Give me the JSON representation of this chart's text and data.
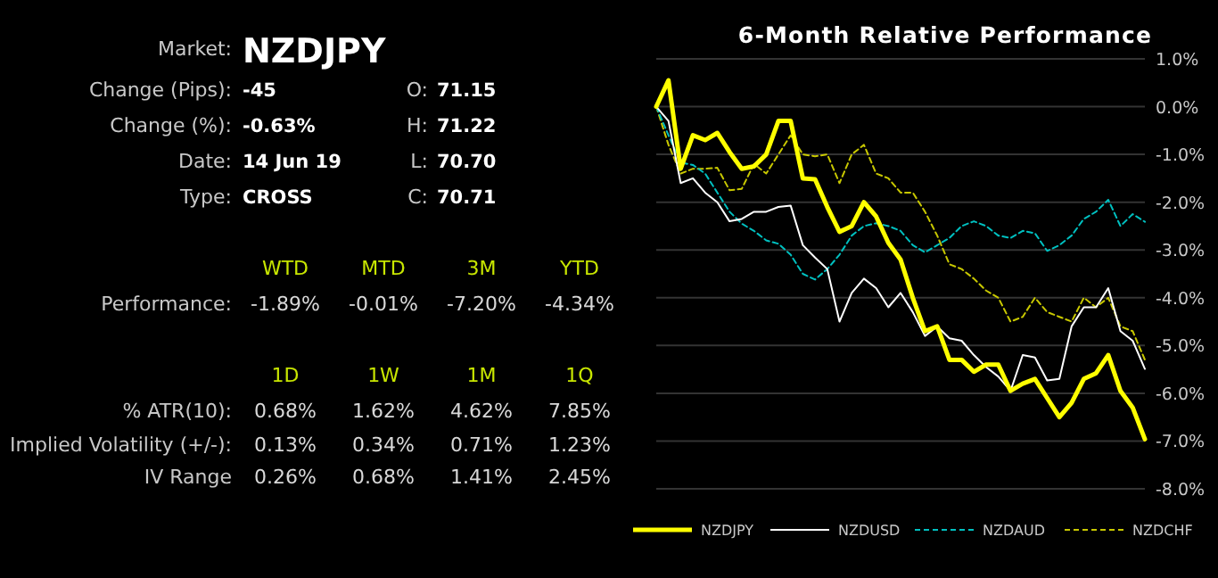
{
  "chart_data": [
    {
      "type": "other",
      "annotations": [
        "Market:",
        "NZDJPY",
        "Change (Pips):",
        "-45",
        "O:",
        "71.15",
        "Change (%):",
        "-0.63%",
        "H:",
        "71.22",
        "Date:",
        "14 Jun 19",
        "L:",
        "70.70",
        "Type:",
        "CROSS",
        "C:",
        "70.71",
        "WTD",
        "MTD",
        "3M",
        "YTD",
        "Performance:",
        "-1.89%",
        "-0.01%",
        "-7.20%",
        "-4.34%",
        "1D",
        "1W",
        "1M",
        "1Q",
        "% ATR(10):",
        "0.68%",
        "1.62%",
        "4.62%",
        "7.85%",
        "Implied Volatility (+/-):",
        "0.13%",
        "0.34%",
        "0.71%",
        "1.23%",
        "IV Range",
        "0.26%",
        "0.68%",
        "1.41%",
        "2.45%"
      ]
    },
    {
      "type": "line",
      "title": "6-Month Relative Performance",
      "categories": [
        null,
        null,
        null,
        null,
        null,
        null,
        null,
        null,
        null,
        null,
        null,
        null,
        null,
        null,
        null,
        null,
        null,
        null,
        null,
        null,
        null,
        null,
        null,
        null,
        null,
        null,
        null,
        null,
        null,
        null,
        null,
        null,
        null,
        null,
        null,
        null,
        null,
        null,
        null,
        null,
        null
      ],
      "series": [
        {
          "name": "NZDJPY",
          "color": "#ffff00",
          "line_style": "solid",
          "values": [
            0,
            0.55,
            -1.3,
            -0.6,
            -0.7,
            -0.55,
            -0.95,
            -1.3,
            -1.25,
            -1.0,
            -0.3,
            -0.3,
            -1.5,
            -1.52,
            -2.1,
            -2.62,
            -2.5,
            -2.0,
            -2.3,
            -2.85,
            -3.2,
            -4.0,
            -4.7,
            -4.6,
            -5.3,
            -5.3,
            -5.55,
            -5.4,
            -5.4,
            -5.95,
            -5.8,
            -5.7,
            -6.1,
            -6.5,
            -6.2,
            -5.7,
            -5.58,
            -5.2,
            -5.95,
            -6.3,
            -6.96
          ]
        },
        {
          "name": "NZDUSD",
          "color": "#ffffff",
          "line_style": "solid",
          "values": [
            0,
            -0.3,
            -1.6,
            -1.5,
            -1.8,
            -2.0,
            -2.4,
            -2.35,
            -2.2,
            -2.2,
            -2.1,
            -2.07,
            -2.9,
            -3.16,
            -3.4,
            -4.5,
            -3.9,
            -3.6,
            -3.8,
            -4.2,
            -3.9,
            -4.3,
            -4.8,
            -4.6,
            -4.85,
            -4.9,
            -5.2,
            -5.45,
            -5.65,
            -5.95,
            -5.2,
            -5.25,
            -5.73,
            -5.7,
            -4.6,
            -4.2,
            -4.2,
            -3.8,
            -4.7,
            -4.9,
            -5.49
          ]
        },
        {
          "name": "NZDAUD",
          "color": "#00c0c0",
          "line_style": "dashed",
          "values": [
            0,
            -0.6,
            -1.17,
            -1.22,
            -1.4,
            -1.8,
            -2.2,
            -2.45,
            -2.6,
            -2.8,
            -2.87,
            -3.1,
            -3.5,
            -3.62,
            -3.4,
            -3.1,
            -2.7,
            -2.5,
            -2.44,
            -2.5,
            -2.6,
            -2.9,
            -3.05,
            -2.9,
            -2.75,
            -2.5,
            -2.4,
            -2.5,
            -2.7,
            -2.75,
            -2.6,
            -2.65,
            -3.02,
            -2.9,
            -2.7,
            -2.35,
            -2.2,
            -1.95,
            -2.5,
            -2.25,
            -2.41
          ]
        },
        {
          "name": "NZDCHF",
          "color": "#c8c800",
          "line_style": "dashed",
          "values": [
            0,
            -0.8,
            -1.4,
            -1.3,
            -1.3,
            -1.28,
            -1.75,
            -1.72,
            -1.2,
            -1.4,
            -1.0,
            -0.6,
            -1.0,
            -1.04,
            -1.0,
            -1.6,
            -1.0,
            -0.8,
            -1.4,
            -1.5,
            -1.8,
            -1.8,
            -2.2,
            -2.7,
            -3.3,
            -3.4,
            -3.6,
            -3.85,
            -4.0,
            -4.5,
            -4.4,
            -4.0,
            -4.3,
            -4.4,
            -4.5,
            -4.0,
            -4.2,
            -4.0,
            -4.6,
            -4.7,
            -5.3
          ]
        }
      ],
      "ylim": [
        -8,
        1
      ],
      "yticks": [
        {
          "value": 1,
          "label": "1.0%"
        },
        {
          "value": 0,
          "label": "0.0%"
        },
        {
          "value": -1,
          "label": "-1.0%"
        },
        {
          "value": -2,
          "label": "-2.0%"
        },
        {
          "value": -3,
          "label": "-3.0%"
        },
        {
          "value": -4,
          "label": "-4.0%"
        },
        {
          "value": -5,
          "label": "-5.0%"
        },
        {
          "value": -6,
          "label": "-6.0%"
        },
        {
          "value": -7,
          "label": "-7.0%"
        },
        {
          "value": -8,
          "label": "-8.0%"
        }
      ],
      "tick_labels": "y",
      "grid": "y",
      "legend": "bottom"
    }
  ]
}
